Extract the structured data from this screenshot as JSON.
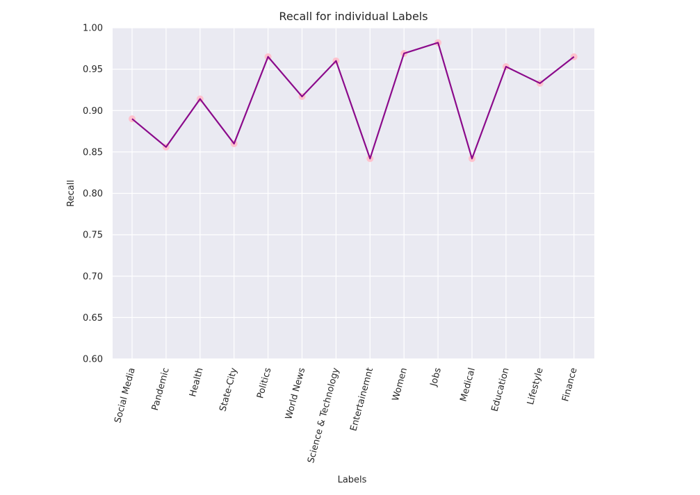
{
  "chart_data": {
    "type": "line",
    "title": "Recall for individual Labels",
    "xlabel": "Labels",
    "ylabel": "Recall",
    "ylim": [
      0.6,
      1.0
    ],
    "yticks": [
      "0.60",
      "0.65",
      "0.70",
      "0.75",
      "0.80",
      "0.85",
      "0.90",
      "0.95",
      "1.00"
    ],
    "categories": [
      "Social Media",
      "Pandemic",
      "Health",
      "State-City",
      "Politics",
      "World News",
      "Science & Technology",
      "Entertainemnt",
      "Women",
      "Jobs",
      "Medical",
      "Education",
      "Lifestyle",
      "Finance"
    ],
    "values": [
      0.89,
      0.856,
      0.914,
      0.86,
      0.965,
      0.917,
      0.96,
      0.842,
      0.969,
      0.982,
      0.842,
      0.953,
      0.933,
      0.965
    ],
    "grid": true,
    "colors": {
      "line": "#8b0a8b",
      "marker": "#ffc0cb",
      "plot_background": "#eaeaf2",
      "grid": "#ffffff",
      "text": "#262626"
    }
  }
}
